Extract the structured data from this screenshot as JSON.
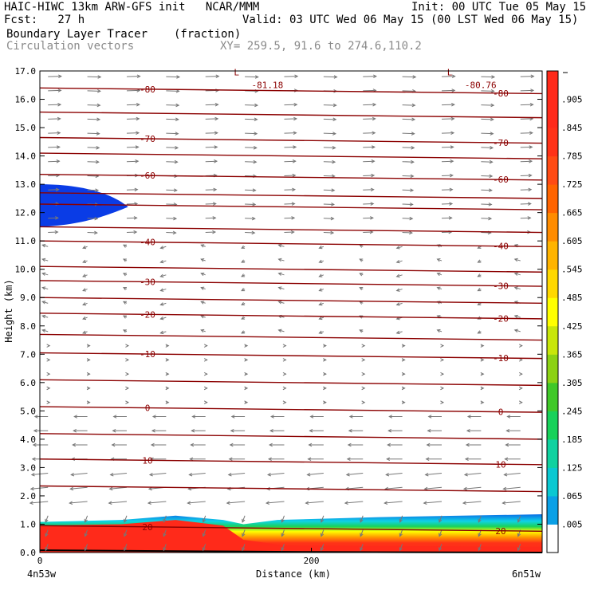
{
  "header": {
    "model": "HAIC-HIWC 13km ARW-GFS init   NCAR/MMM",
    "init": "Init: 00 UTC Tue 05 May 15",
    "fcst": "Fcst:   27 h",
    "valid": "Valid: 03 UTC Wed 06 May 15 (00 LST Wed 06 May 15)",
    "field": "Boundary Layer Tracer",
    "units": "(fraction)",
    "vectors": "Circulation vectors",
    "xy": "XY= 259.5, 91.6 to 274.6,110.2"
  },
  "colors": {
    "contour": "#8b0000",
    "vector": "#777777",
    "low_blue": "#0a3ce6",
    "high_red": "#ff2a1a"
  },
  "chart_data": {
    "type": "heatmap",
    "title": "Boundary Layer Tracer",
    "xlabel": "Distance (km)",
    "ylabel": "Height (km)",
    "xlim": [
      0,
      370
    ],
    "ylim": [
      0,
      17
    ],
    "x_ticks": [
      "0",
      "200"
    ],
    "x_tick_values": [
      0,
      200
    ],
    "x_end_labels": [
      "4n53w",
      "6n51w"
    ],
    "y_ticks": [
      "0.0",
      "1.0",
      "2.0",
      "3.0",
      "4.0",
      "5.0",
      "6.0",
      "7.0",
      "8.0",
      "9.0",
      "10.0",
      "11.0",
      "12.0",
      "13.0",
      "14.0",
      "15.0",
      "16.0",
      "17.0"
    ],
    "colorbar": {
      "labels": [
        ".005",
        ".065",
        ".125",
        ".185",
        ".245",
        ".305",
        ".365",
        ".425",
        ".485",
        ".545",
        ".605",
        ".665",
        ".725",
        ".785",
        ".845",
        ".905"
      ],
      "colors": [
        "#ffffff",
        "#0aa0e6",
        "#0ac8d2",
        "#10d2a0",
        "#18d25a",
        "#40c828",
        "#8cd214",
        "#c8e60a",
        "#ffff00",
        "#ffd800",
        "#ffb400",
        "#ff8c00",
        "#ff6400",
        "#ff4b14",
        "#ff3218",
        "#ff2a1a",
        "#ff2a1a"
      ]
    },
    "temperature_contours": [
      {
        "height": 0.85,
        "label": "20"
      },
      {
        "height": 2.25,
        "label": ""
      },
      {
        "height": 3.2,
        "label": "10"
      },
      {
        "height": 4.1,
        "label": ""
      },
      {
        "height": 5.05,
        "label": "0"
      },
      {
        "height": 6.0,
        "label": ""
      },
      {
        "height": 6.95,
        "label": "-10"
      },
      {
        "height": 7.6,
        "label": ""
      },
      {
        "height": 8.35,
        "label": "-20"
      },
      {
        "height": 8.9,
        "label": ""
      },
      {
        "height": 9.5,
        "label": "-30"
      },
      {
        "height": 10.0,
        "label": ""
      },
      {
        "height": 10.9,
        "label": "-40"
      },
      {
        "height": 11.4,
        "label": ""
      },
      {
        "height": 12.2,
        "label": ""
      },
      {
        "height": 12.6,
        "label": ""
      },
      {
        "height": 13.25,
        "label": "-60"
      },
      {
        "height": 14.0,
        "label": ""
      },
      {
        "height": 14.55,
        "label": "-70"
      },
      {
        "height": 15.45,
        "label": ""
      },
      {
        "height": 16.3,
        "label": "-80"
      }
    ],
    "minimum_markers": [
      {
        "symbol": "L",
        "value": "-81.18",
        "x": 150
      },
      {
        "symbol": "L",
        "value": "-80.76",
        "x": 307
      }
    ],
    "tracer_regions": [
      {
        "name": "upper-blue-patch",
        "description_value_range": ".005-.065",
        "x": [
          0,
          65
        ],
        "height": [
          11.5,
          13.0
        ]
      },
      {
        "name": "boundary-layer",
        "description_value_range": ".905+",
        "x": [
          0,
          370
        ],
        "height": [
          0.0,
          1.3
        ]
      }
    ]
  }
}
